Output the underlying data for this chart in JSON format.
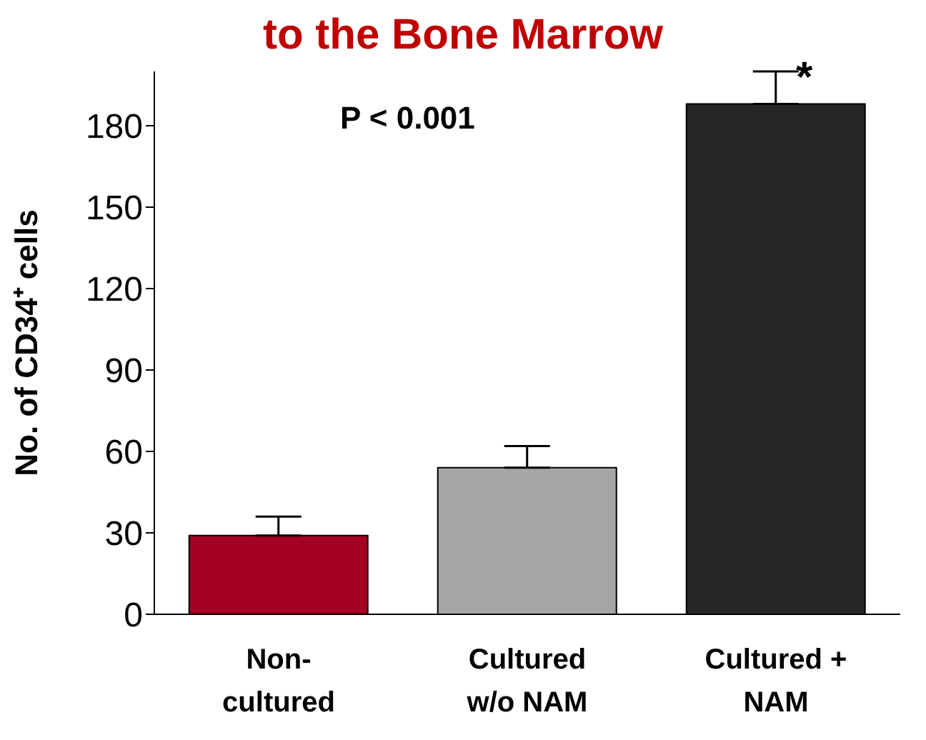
{
  "chart_data": {
    "type": "bar",
    "title": "to the Bone Marrow",
    "ylabel": "No. of CD34⁺ cells",
    "categories": [
      "Non-\ncultured",
      "Cultured\nw/o NAM",
      "Cultured +\nNAM"
    ],
    "values": [
      29,
      54,
      188
    ],
    "colors": [
      "#a50021",
      "#a6a6a6",
      "#262626"
    ],
    "errors": [
      [
        29,
        36
      ],
      [
        54,
        62
      ],
      [
        188,
        200
      ]
    ],
    "ylim": [
      0,
      200
    ],
    "yticks": [
      0,
      30,
      60,
      90,
      120,
      150,
      180
    ],
    "annotations": [
      "P < 0.001",
      {
        "text": "*",
        "x": "Cultured +\nNAM",
        "y": 200
      }
    ]
  }
}
